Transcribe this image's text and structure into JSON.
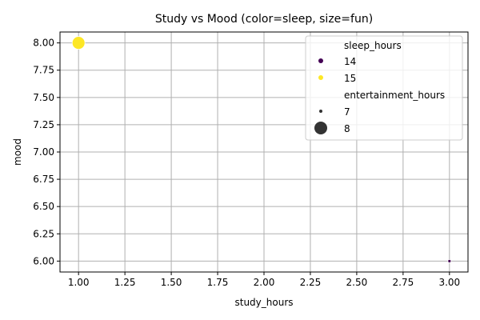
{
  "chart_data": {
    "type": "scatter",
    "title": "Study vs Mood (color=sleep, size=fun)",
    "xlabel": "study_hours",
    "ylabel": "mood",
    "xlim": [
      0.9,
      3.1
    ],
    "ylim": [
      5.9,
      8.1
    ],
    "x_ticks": [
      "1.00",
      "1.25",
      "1.50",
      "1.75",
      "2.00",
      "2.25",
      "2.50",
      "2.75",
      "3.00"
    ],
    "y_ticks": [
      "6.00",
      "6.25",
      "6.50",
      "6.75",
      "7.00",
      "7.25",
      "7.50",
      "7.75",
      "8.00"
    ],
    "grid": true,
    "legend_position": "top-right",
    "points": [
      {
        "x": 1.0,
        "y": 8.0,
        "sleep_hours": 15,
        "entertainment_hours": 8,
        "color": "#fde725"
      },
      {
        "x": 3.0,
        "y": 6.0,
        "sleep_hours": 14,
        "entertainment_hours": 7,
        "color": "#440154"
      }
    ],
    "legend": {
      "hue_title": "sleep_hours",
      "hue_entries": [
        {
          "label": "14",
          "color": "#440154"
        },
        {
          "label": "15",
          "color": "#fde725"
        }
      ],
      "size_title": "entertainment_hours",
      "size_entries": [
        {
          "label": "7",
          "size": 7
        },
        {
          "label": "8",
          "size": 8
        }
      ]
    }
  }
}
